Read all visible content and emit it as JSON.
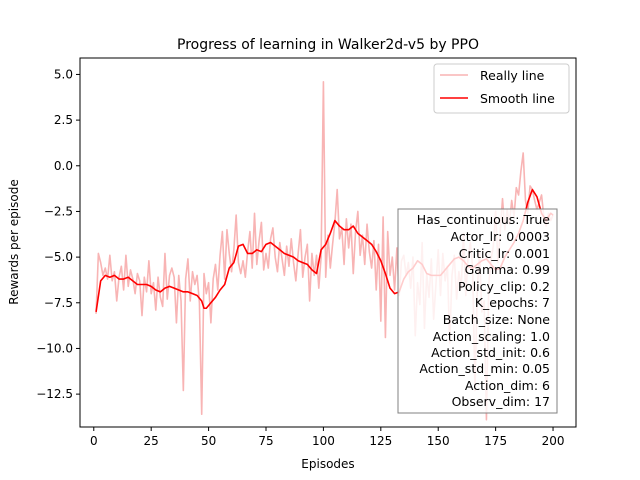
{
  "chart_data": {
    "type": "line",
    "title": "Progress of learning in Walker2d-v5 by PPO",
    "xlabel": "Episodes",
    "ylabel": "Rewards per episode",
    "xlim": [
      -6,
      210
    ],
    "ylim": [
      -14.3,
      5.9
    ],
    "xticks": [
      0,
      25,
      50,
      75,
      100,
      125,
      150,
      175,
      200
    ],
    "yticks": [
      5.0,
      2.5,
      0.0,
      -2.5,
      -5.0,
      -7.5,
      -10.0,
      -12.5
    ],
    "ytick_labels": [
      "5.0",
      "2.5",
      "0.0",
      "−2.5",
      "−5.0",
      "−7.5",
      "−10.0",
      "−12.5"
    ],
    "grid": false,
    "legend_position": "top-right",
    "series": [
      {
        "name": "Really line",
        "color": "#f8b4b4",
        "x": [
          1,
          2,
          3,
          4,
          5,
          6,
          7,
          8,
          9,
          10,
          11,
          12,
          13,
          14,
          15,
          16,
          17,
          18,
          19,
          20,
          21,
          22,
          23,
          24,
          25,
          26,
          27,
          28,
          29,
          30,
          31,
          32,
          33,
          34,
          35,
          36,
          37,
          38,
          39,
          40,
          41,
          42,
          43,
          44,
          45,
          46,
          47,
          48,
          49,
          50,
          51,
          52,
          53,
          54,
          55,
          56,
          57,
          58,
          59,
          60,
          61,
          62,
          63,
          64,
          65,
          66,
          67,
          68,
          69,
          70,
          71,
          72,
          73,
          74,
          75,
          76,
          77,
          78,
          79,
          80,
          81,
          82,
          83,
          84,
          85,
          86,
          87,
          88,
          89,
          90,
          91,
          92,
          93,
          94,
          95,
          96,
          97,
          98,
          99,
          100,
          101,
          102,
          103,
          104,
          105,
          106,
          107,
          108,
          109,
          110,
          111,
          112,
          113,
          114,
          115,
          116,
          117,
          118,
          119,
          120,
          121,
          122,
          123,
          124,
          125,
          126,
          127,
          128,
          129,
          130,
          131,
          132,
          133,
          134,
          135,
          136,
          137,
          138,
          139,
          140,
          141,
          142,
          143,
          144,
          145,
          146,
          147,
          148,
          149,
          150,
          151,
          152,
          153,
          154,
          155,
          156,
          157,
          158,
          159,
          160,
          161,
          162,
          163,
          164,
          165,
          166,
          167,
          168,
          169,
          170,
          171,
          172,
          173,
          174,
          175,
          176,
          177,
          178,
          179,
          180,
          181,
          182,
          183,
          184,
          185,
          186,
          187,
          188,
          189,
          190,
          191,
          192,
          193,
          194,
          195,
          196,
          197,
          198,
          199,
          200
        ],
        "values": [
          -8.1,
          -4.8,
          -5.3,
          -6.0,
          -5.6,
          -6.2,
          -4.9,
          -6.3,
          -5.8,
          -7.4,
          -6.1,
          -5.5,
          -6.8,
          -4.9,
          -6.6,
          -5.7,
          -6.2,
          -7.0,
          -5.9,
          -6.3,
          -8.2,
          -6.1,
          -6.9,
          -5.2,
          -7.0,
          -6.4,
          -7.9,
          -6.1,
          -7.2,
          -7.7,
          -4.8,
          -7.3,
          -6.0,
          -5.6,
          -6.1,
          -8.6,
          -6.0,
          -7.4,
          -12.3,
          -6.2,
          -5.1,
          -7.4,
          -5.8,
          -6.5,
          -6.0,
          -7.5,
          -13.6,
          -5.9,
          -7.0,
          -6.4,
          -8.6,
          -6.2,
          -5.4,
          -6.8,
          -4.9,
          -3.6,
          -6.2,
          -3.5,
          -4.8,
          -5.8,
          -4.6,
          -2.7,
          -5.3,
          -5.9,
          -5.2,
          -6.1,
          -4.7,
          -3.6,
          -5.6,
          -2.6,
          -5.4,
          -4.1,
          -3.1,
          -5.7,
          -4.8,
          -5.6,
          -4.0,
          -3.4,
          -5.0,
          -5.8,
          -4.2,
          -5.1,
          -6.0,
          -4.4,
          -5.5,
          -4.0,
          -5.3,
          -6.3,
          -4.8,
          -3.5,
          -6.1,
          -5.0,
          -4.3,
          -7.4,
          -4.8,
          -6.0,
          -4.9,
          -6.7,
          -5.0,
          4.6,
          -6.1,
          -3.8,
          -5.6,
          -4.3,
          -3.1,
          -1.3,
          -4.0,
          -3.4,
          -5.4,
          -2.9,
          -4.5,
          -3.2,
          -5.9,
          -3.6,
          -2.5,
          -4.9,
          -3.8,
          -5.4,
          -3.2,
          -4.7,
          -5.6,
          -4.1,
          -6.8,
          -4.3,
          -8.5,
          -2.8,
          -9.4,
          -3.6,
          -6.0,
          -5.0,
          -6.8,
          -4.5,
          -7.1,
          -5.2,
          -4.9,
          -6.0,
          -5.3,
          -6.7,
          -5.0,
          -9.3,
          -6.4,
          -7.6,
          -4.2,
          -8.9,
          -5.9,
          -7.2,
          -5.1,
          -8.4,
          -6.5,
          -4.6,
          -7.1,
          -4.8,
          -6.3,
          -5.5,
          -9.7,
          -6.0,
          -4.9,
          -7.3,
          -5.8,
          -6.7,
          -3.7,
          -7.1,
          -5.0,
          -4.2,
          -5.6,
          -12.3,
          -6.8,
          -4.7,
          -8.0,
          -7.4,
          -13.9,
          -6.5,
          -5.1,
          -4.4,
          -2.5,
          -5.3,
          -3.6,
          -1.8,
          -3.5,
          -2.4,
          -3.2,
          -1.9,
          -2.8,
          -1.2,
          -1.6,
          -0.3,
          0.7,
          -1.9,
          -2.6,
          -1.1,
          -1.3,
          -1.9,
          -2.4,
          -2.0,
          -1.6,
          -2.8,
          -3.3,
          -2.6,
          -3.0,
          -2.7
        ]
      },
      {
        "name": "Smooth line",
        "color": "#ff0000",
        "x": [
          1,
          3,
          5,
          7,
          9,
          11,
          13,
          15,
          17,
          19,
          21,
          23,
          25,
          27,
          29,
          31,
          33,
          35,
          37,
          39,
          41,
          43,
          45,
          47,
          48,
          49,
          51,
          53,
          55,
          57,
          59,
          61,
          63,
          65,
          67,
          69,
          71,
          73,
          75,
          77,
          79,
          81,
          83,
          85,
          87,
          89,
          91,
          93,
          95,
          97,
          99,
          101,
          103,
          105,
          107,
          109,
          111,
          113,
          115,
          117,
          119,
          121,
          123,
          125,
          127,
          129,
          131,
          133,
          135,
          137,
          139,
          141,
          143,
          145,
          147,
          149,
          151,
          153,
          155,
          157,
          159,
          161,
          163,
          165,
          167,
          169,
          171,
          173,
          175,
          177,
          179,
          181,
          183,
          185,
          187,
          189,
          191,
          193,
          195,
          197,
          199,
          200
        ],
        "values": [
          -8.0,
          -6.3,
          -6.0,
          -6.1,
          -6.0,
          -6.2,
          -6.2,
          -6.1,
          -6.3,
          -6.5,
          -6.5,
          -6.5,
          -6.6,
          -6.8,
          -6.9,
          -6.7,
          -6.6,
          -6.7,
          -6.8,
          -6.9,
          -6.9,
          -7.0,
          -7.1,
          -7.4,
          -7.8,
          -7.8,
          -7.5,
          -7.2,
          -6.8,
          -6.5,
          -5.6,
          -5.3,
          -4.4,
          -4.3,
          -4.8,
          -4.8,
          -4.6,
          -4.7,
          -4.3,
          -4.2,
          -4.4,
          -4.6,
          -4.8,
          -4.9,
          -5.0,
          -5.2,
          -5.3,
          -5.4,
          -5.7,
          -5.9,
          -4.6,
          -4.3,
          -3.7,
          -3.0,
          -3.3,
          -3.5,
          -3.5,
          -3.3,
          -3.7,
          -3.9,
          -4.1,
          -4.3,
          -4.7,
          -5.2,
          -5.9,
          -6.7,
          -7.0,
          -6.9,
          -6.2,
          -5.8,
          -5.6,
          -5.2,
          -5.4,
          -5.9,
          -6.0,
          -6.0,
          -6.0,
          -5.7,
          -5.4,
          -5.1,
          -5.0,
          -5.2,
          -5.5,
          -5.6,
          -5.4,
          -5.2,
          -5.1,
          -5.4,
          -5.7,
          -5.6,
          -5.0,
          -4.6,
          -4.2,
          -3.7,
          -3.0,
          -2.0,
          -1.3,
          -1.7,
          -2.6,
          -3.0,
          -2.6,
          -2.7
        ]
      }
    ],
    "annotation": [
      "Has_continuous: True",
      "Actor_lr: 0.0003",
      "Critic_lr: 0.001",
      "Gamma: 0.99",
      "Policy_clip: 0.2",
      "K_epochs: 7",
      "Batch_size: None",
      "Action_scaling: 1.0",
      "Action_std_init: 0.6",
      "Action_std_min: 0.05",
      "Action_dim: 6",
      "Observ_dim: 17"
    ]
  }
}
